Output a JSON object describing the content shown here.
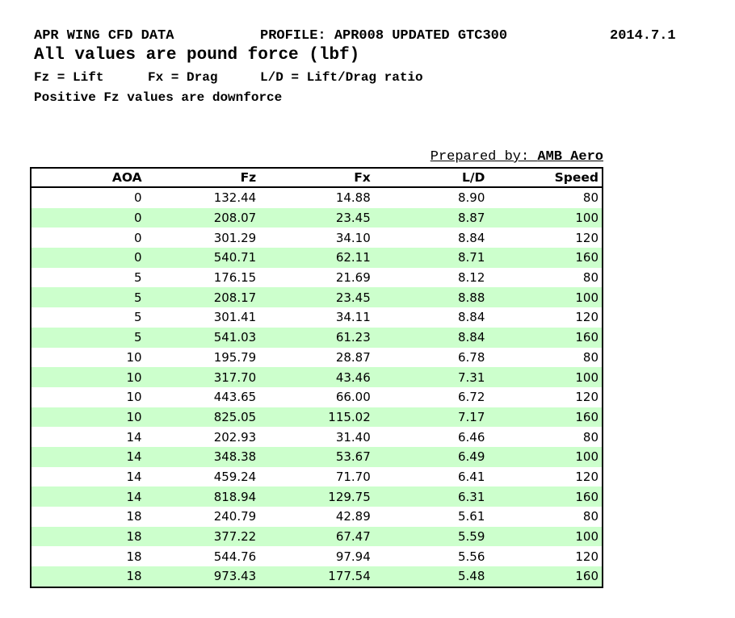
{
  "header": {
    "line1": {
      "left": "APR WING CFD DATA",
      "middle": "PROFILE: APR008 UPDATED GTC300",
      "right": "2014.7.1"
    },
    "line2": "All values are pound force (lbf)",
    "line3": {
      "seg1": "Fz = Lift",
      "seg2": "Fx = Drag",
      "seg3": "L/D = Lift/Drag ratio"
    },
    "line4": "Positive Fz values are downforce"
  },
  "prepared_by": {
    "label": "Prepared by: ",
    "value": "AMB Aero"
  },
  "table": {
    "columns": [
      "AOA",
      "Fz",
      "Fx",
      "L/D",
      "Speed"
    ],
    "row_highlight_color": "#ccffcc",
    "rows": [
      [
        "0",
        "132.44",
        "14.88",
        "8.90",
        "80"
      ],
      [
        "0",
        "208.07",
        "23.45",
        "8.87",
        "100"
      ],
      [
        "0",
        "301.29",
        "34.10",
        "8.84",
        "120"
      ],
      [
        "0",
        "540.71",
        "62.11",
        "8.71",
        "160"
      ],
      [
        "5",
        "176.15",
        "21.69",
        "8.12",
        "80"
      ],
      [
        "5",
        "208.17",
        "23.45",
        "8.88",
        "100"
      ],
      [
        "5",
        "301.41",
        "34.11",
        "8.84",
        "120"
      ],
      [
        "5",
        "541.03",
        "61.23",
        "8.84",
        "160"
      ],
      [
        "10",
        "195.79",
        "28.87",
        "6.78",
        "80"
      ],
      [
        "10",
        "317.70",
        "43.46",
        "7.31",
        "100"
      ],
      [
        "10",
        "443.65",
        "66.00",
        "6.72",
        "120"
      ],
      [
        "10",
        "825.05",
        "115.02",
        "7.17",
        "160"
      ],
      [
        "14",
        "202.93",
        "31.40",
        "6.46",
        "80"
      ],
      [
        "14",
        "348.38",
        "53.67",
        "6.49",
        "100"
      ],
      [
        "14",
        "459.24",
        "71.70",
        "6.41",
        "120"
      ],
      [
        "14",
        "818.94",
        "129.75",
        "6.31",
        "160"
      ],
      [
        "18",
        "240.79",
        "42.89",
        "5.61",
        "80"
      ],
      [
        "18",
        "377.22",
        "67.47",
        "5.59",
        "100"
      ],
      [
        "18",
        "544.76",
        "97.94",
        "5.56",
        "120"
      ],
      [
        "18",
        "973.43",
        "177.54",
        "5.48",
        "160"
      ]
    ]
  }
}
